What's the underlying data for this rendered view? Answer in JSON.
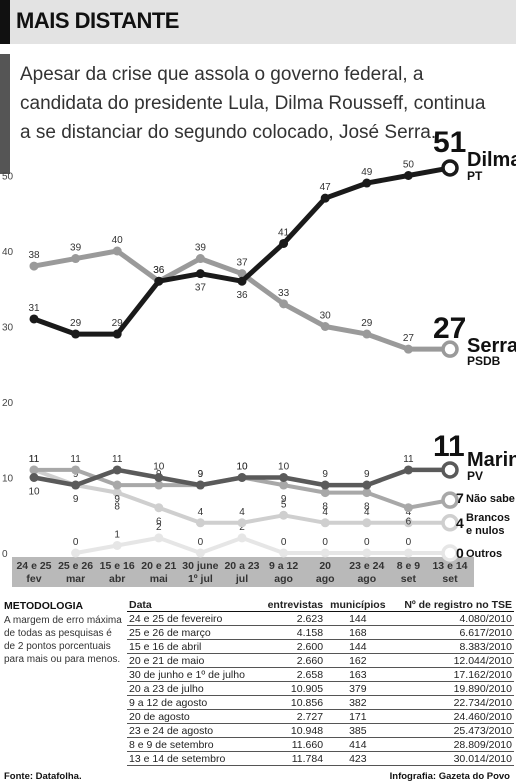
{
  "header": {
    "title": "MAIS DISTANTE",
    "lead": "Apesar da crise que assola o governo federal, a candidata do presidente Lula, Dilma Rousseff, continua a se distanciar do segundo colocado, José Serra."
  },
  "chart_data": {
    "type": "line",
    "yticks": [
      "0",
      "10",
      "20",
      "30",
      "40",
      "50"
    ],
    "ylim": [
      0,
      52
    ],
    "grid": false,
    "categories": [
      [
        "24 e 25",
        "fev"
      ],
      [
        "25 e 26",
        "mar"
      ],
      [
        "15 e 16",
        "abr"
      ],
      [
        "20 e 21",
        "mai"
      ],
      [
        "30 june",
        "1º jul"
      ],
      [
        "20 a 23",
        "jul"
      ],
      [
        "9 a 12",
        "ago"
      ],
      [
        "20",
        "ago"
      ],
      [
        "23 e 24",
        "ago"
      ],
      [
        "8 e 9",
        "set"
      ],
      [
        "13 e 14",
        "set"
      ]
    ],
    "series": [
      {
        "name": "Dilma",
        "party": "PT",
        "final_label": "51",
        "color": "#1a1a1a",
        "values": [
          31,
          29,
          29,
          36,
          37,
          36,
          41,
          47,
          49,
          50,
          51
        ]
      },
      {
        "name": "Serra",
        "party": "PSDB",
        "final_label": "27",
        "color": "#9a9a9a",
        "values": [
          38,
          39,
          40,
          36,
          39,
          37,
          33,
          30,
          29,
          27,
          27
        ]
      },
      {
        "name": "Marina",
        "party": "PV",
        "final_label": "11",
        "color": "#5a5a5a",
        "values": [
          10,
          9,
          11,
          10,
          9,
          10,
          10,
          9,
          9,
          11,
          11
        ]
      },
      {
        "name": "Não sabe",
        "party": "",
        "final_label": "7",
        "color": "#a8a8a8",
        "values": [
          11,
          11,
          9,
          9,
          9,
          10,
          9,
          8,
          8,
          6,
          7
        ]
      },
      {
        "name": "Brancos e nulos",
        "party": "",
        "final_label": "4",
        "color": "#cfcfcf",
        "values": [
          11,
          9,
          8,
          6,
          4,
          4,
          5,
          4,
          4,
          4,
          4
        ]
      },
      {
        "name": "Outros",
        "party": "",
        "final_label": "0",
        "color": "#e6e6e6",
        "values": [
          null,
          0,
          1,
          2,
          0,
          2,
          0,
          0,
          0,
          0,
          0
        ]
      }
    ],
    "label_texts": [
      "Não sabe",
      "Brancos",
      "e nulos",
      "Outros"
    ]
  },
  "methodology": {
    "title": "METODOLOGIA",
    "text": "A margem de erro máxima de todas as pesquisas é de 2 pontos porcentuais para mais ou para menos."
  },
  "table": {
    "headers": [
      "Data",
      "entrevistas",
      "municípios",
      "Nº de registro no TSE"
    ],
    "rows": [
      [
        "24 e 25 de fevereiro",
        "2.623",
        "144",
        "4.080/2010"
      ],
      [
        "25 e 26 de março",
        "4.158",
        "168",
        "6.617/2010"
      ],
      [
        "15 e 16 de abril",
        "2.600",
        "144",
        "8.383/2010"
      ],
      [
        "20 e 21 de maio",
        "2.660",
        "162",
        "12.044/2010"
      ],
      [
        "30 de junho e 1º de julho",
        "2.658",
        "163",
        "17.162/2010"
      ],
      [
        "20 a 23 de julho",
        "10.905",
        "379",
        "19.890/2010"
      ],
      [
        "9 a 12 de agosto",
        "10.856",
        "382",
        "22.734/2010"
      ],
      [
        "20 de agosto",
        "2.727",
        "171",
        "24.460/2010"
      ],
      [
        "23 e 24 de agosto",
        "10.948",
        "385",
        "25.473/2010"
      ],
      [
        "8 e 9 de setembro",
        "11.660",
        "414",
        "28.809/2010"
      ],
      [
        "13 e 14 de setembro",
        "11.784",
        "423",
        "30.014/2010"
      ]
    ]
  },
  "footer": {
    "source": "Fonte: Datafolha.",
    "credit": "Infografia: Gazeta do Povo"
  }
}
